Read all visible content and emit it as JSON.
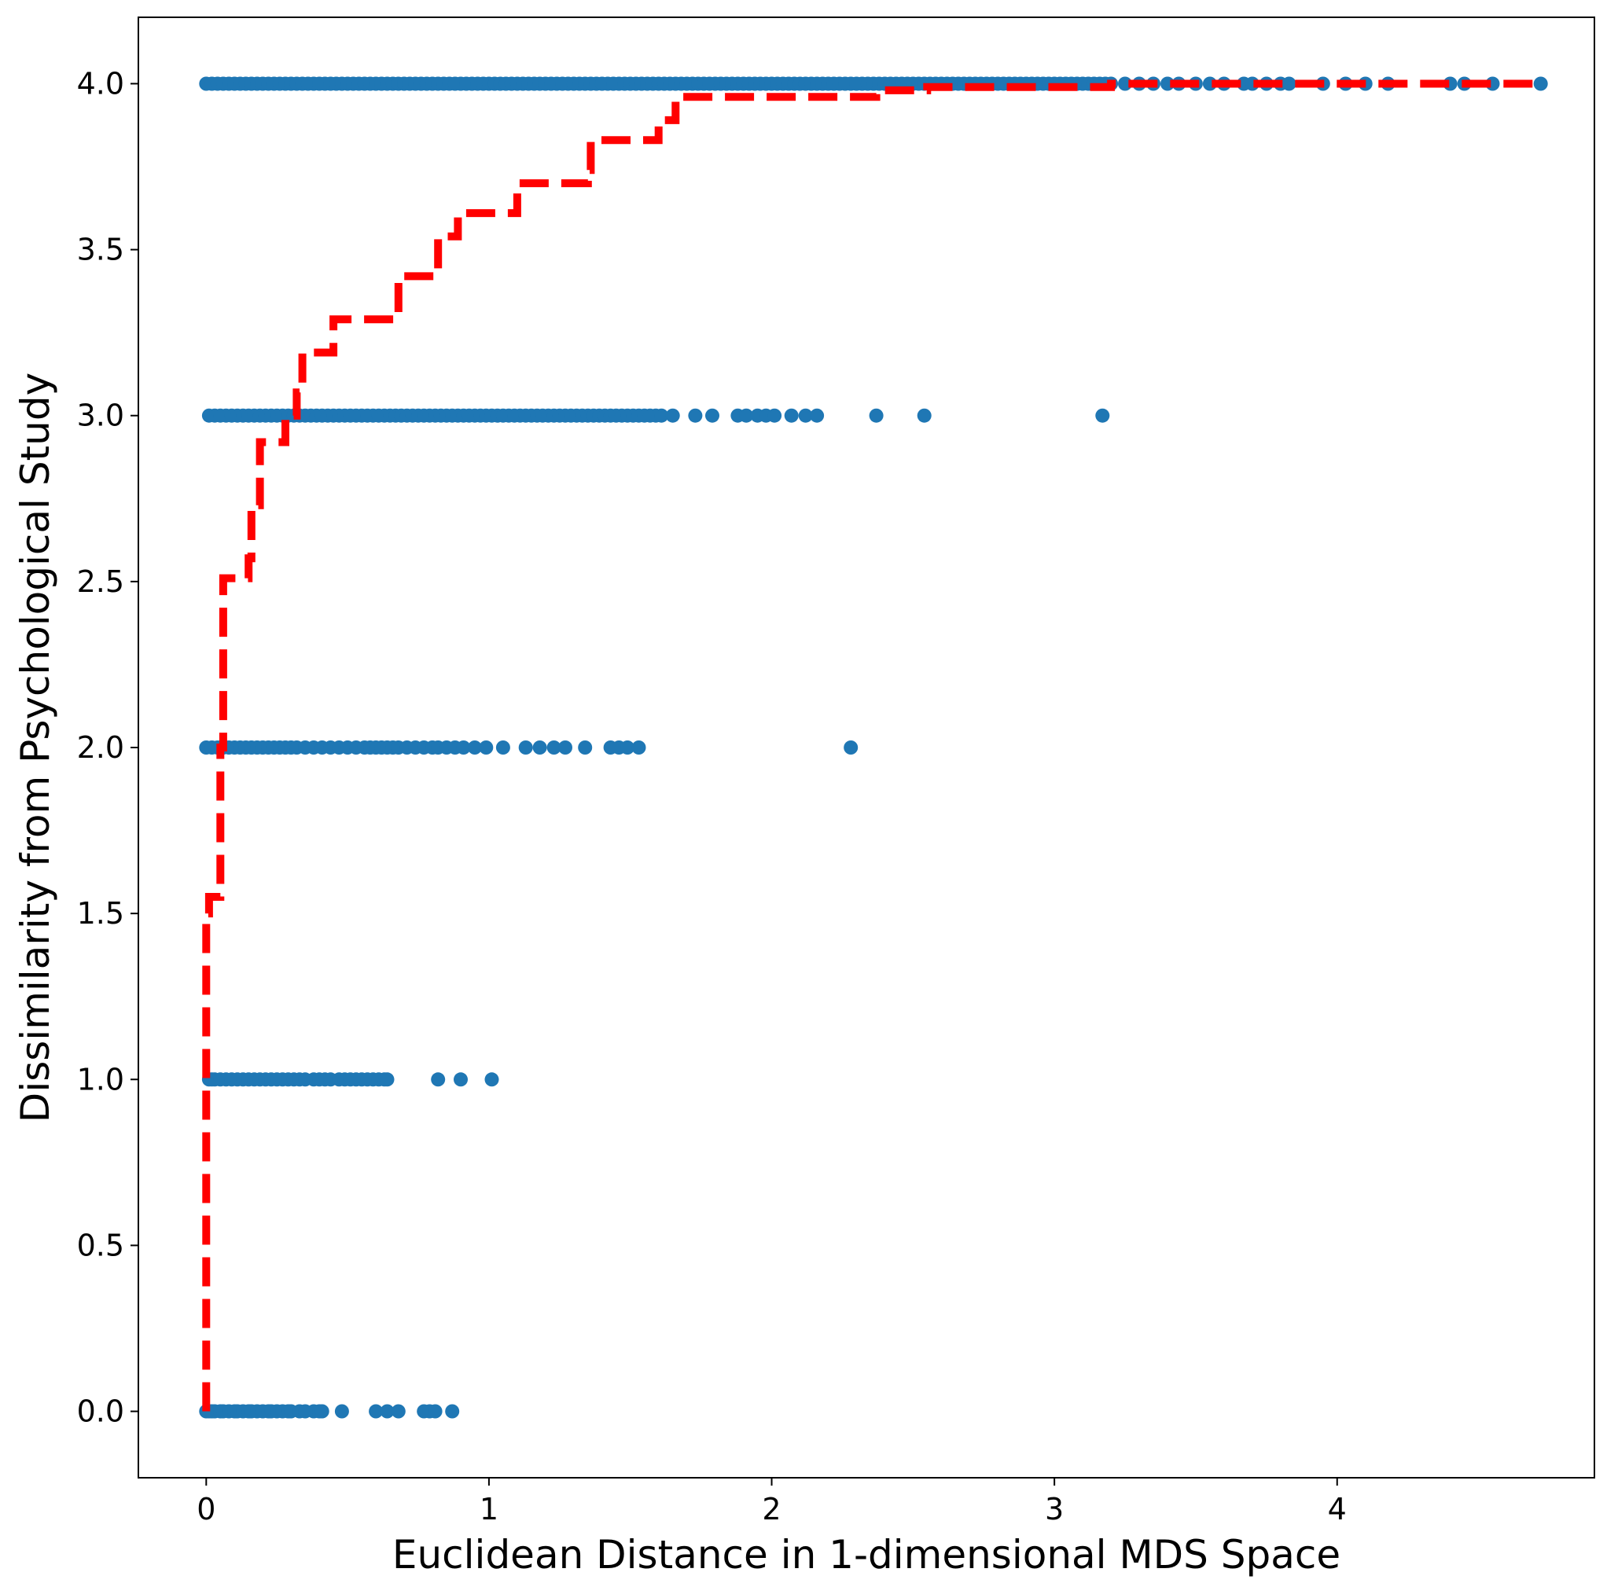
{
  "chart_data": {
    "type": "scatter",
    "title": "",
    "xlabel": "Euclidean Distance in 1-dimensional MDS Space",
    "ylabel": "Dissimilarity from Psychological Study",
    "xlim": [
      -0.24,
      4.91
    ],
    "ylim": [
      -0.2,
      4.2
    ],
    "x_ticks": [
      0,
      1,
      2,
      3,
      4
    ],
    "x_tick_labels": [
      "0",
      "1",
      "2",
      "3",
      "4"
    ],
    "y_ticks": [
      0.0,
      0.5,
      1.0,
      1.5,
      2.0,
      2.5,
      3.0,
      3.5,
      4.0
    ],
    "y_tick_labels": [
      "0.0",
      "0.5",
      "1.0",
      "1.5",
      "2.0",
      "2.5",
      "3.0",
      "3.5",
      "4.0"
    ],
    "grid": false,
    "legend": "none",
    "colors": {
      "points": "#1f77b4",
      "fit_line": "#ff0000"
    },
    "series": [
      {
        "type": "scatter",
        "rows": [
          {
            "y": 0.0,
            "x": [
              0.0,
              0.01,
              0.02,
              0.03,
              0.05,
              0.06,
              0.08,
              0.1,
              0.11,
              0.13,
              0.15,
              0.16,
              0.18,
              0.2,
              0.22,
              0.23,
              0.25,
              0.27,
              0.29,
              0.3,
              0.33,
              0.35,
              0.38,
              0.4,
              0.41,
              0.48,
              0.6,
              0.64,
              0.68,
              0.77,
              0.79,
              0.81,
              0.87
            ]
          },
          {
            "y": 1.0,
            "x": [
              0.01,
              0.02,
              0.03,
              0.05,
              0.07,
              0.09,
              0.11,
              0.13,
              0.15,
              0.17,
              0.19,
              0.21,
              0.23,
              0.25,
              0.27,
              0.29,
              0.31,
              0.33,
              0.35,
              0.38,
              0.4,
              0.42,
              0.44,
              0.47,
              0.49,
              0.51,
              0.53,
              0.55,
              0.57,
              0.59,
              0.61,
              0.63,
              0.64,
              0.82,
              0.9,
              1.01
            ]
          },
          {
            "y": 2.0,
            "x": [
              0.0,
              0.02,
              0.04,
              0.06,
              0.08,
              0.1,
              0.12,
              0.14,
              0.16,
              0.18,
              0.2,
              0.22,
              0.24,
              0.26,
              0.28,
              0.3,
              0.32,
              0.35,
              0.38,
              0.41,
              0.44,
              0.47,
              0.5,
              0.53,
              0.56,
              0.58,
              0.6,
              0.62,
              0.64,
              0.66,
              0.68,
              0.71,
              0.74,
              0.77,
              0.8,
              0.82,
              0.85,
              0.88,
              0.91,
              0.95,
              0.99,
              1.05,
              1.13,
              1.18,
              1.23,
              1.27,
              1.34,
              1.43,
              1.46,
              1.49,
              1.53,
              2.28
            ]
          },
          {
            "y": 3.0,
            "x": [
              0.01,
              0.03,
              0.05,
              0.07,
              0.09,
              0.11,
              0.13,
              0.15,
              0.17,
              0.19,
              0.21,
              0.23,
              0.25,
              0.27,
              0.29,
              0.31,
              0.33,
              0.35,
              0.37,
              0.39,
              0.41,
              0.43,
              0.45,
              0.47,
              0.49,
              0.51,
              0.53,
              0.55,
              0.57,
              0.59,
              0.61,
              0.63,
              0.65,
              0.67,
              0.69,
              0.71,
              0.73,
              0.75,
              0.77,
              0.79,
              0.81,
              0.83,
              0.85,
              0.87,
              0.89,
              0.91,
              0.93,
              0.95,
              0.97,
              0.99,
              1.01,
              1.03,
              1.05,
              1.07,
              1.09,
              1.11,
              1.13,
              1.15,
              1.17,
              1.19,
              1.21,
              1.23,
              1.25,
              1.27,
              1.29,
              1.31,
              1.33,
              1.35,
              1.37,
              1.39,
              1.41,
              1.43,
              1.45,
              1.47,
              1.49,
              1.51,
              1.53,
              1.55,
              1.57,
              1.59,
              1.61,
              1.65,
              1.73,
              1.79,
              1.88,
              1.91,
              1.95,
              1.98,
              2.01,
              2.07,
              2.12,
              2.16,
              2.37,
              2.54,
              3.17
            ]
          },
          {
            "y": 4.0,
            "x_dense_range": [
              0.0,
              3.2
            ],
            "x": [
              3.25,
              3.3,
              3.35,
              3.4,
              3.44,
              3.5,
              3.55,
              3.6,
              3.67,
              3.7,
              3.75,
              3.8,
              3.83,
              3.95,
              4.03,
              4.1,
              4.18,
              4.4,
              4.45,
              4.55,
              4.72
            ]
          }
        ]
      },
      {
        "type": "step",
        "style": "dashed",
        "points": [
          [
            0.0,
            0.0
          ],
          [
            0.0,
            1.5
          ],
          [
            0.01,
            1.5
          ],
          [
            0.01,
            1.55
          ],
          [
            0.05,
            1.55
          ],
          [
            0.05,
            2.0
          ],
          [
            0.06,
            2.0
          ],
          [
            0.06,
            2.51
          ],
          [
            0.15,
            2.51
          ],
          [
            0.15,
            2.57
          ],
          [
            0.16,
            2.57
          ],
          [
            0.16,
            2.73
          ],
          [
            0.19,
            2.73
          ],
          [
            0.19,
            2.92
          ],
          [
            0.28,
            2.92
          ],
          [
            0.28,
            3.0
          ],
          [
            0.32,
            3.0
          ],
          [
            0.32,
            3.07
          ],
          [
            0.34,
            3.07
          ],
          [
            0.34,
            3.19
          ],
          [
            0.45,
            3.19
          ],
          [
            0.45,
            3.29
          ],
          [
            0.68,
            3.29
          ],
          [
            0.68,
            3.42
          ],
          [
            0.82,
            3.42
          ],
          [
            0.82,
            3.54
          ],
          [
            0.89,
            3.54
          ],
          [
            0.89,
            3.61
          ],
          [
            1.1,
            3.61
          ],
          [
            1.1,
            3.7
          ],
          [
            1.35,
            3.7
          ],
          [
            1.35,
            3.74
          ],
          [
            1.36,
            3.74
          ],
          [
            1.36,
            3.83
          ],
          [
            1.6,
            3.83
          ],
          [
            1.6,
            3.89
          ],
          [
            1.66,
            3.89
          ],
          [
            1.66,
            3.96
          ],
          [
            2.37,
            3.96
          ],
          [
            2.37,
            3.98
          ],
          [
            2.55,
            3.98
          ],
          [
            2.55,
            3.99
          ],
          [
            3.2,
            3.99
          ],
          [
            3.2,
            4.0
          ],
          [
            4.72,
            4.0
          ]
        ]
      }
    ]
  }
}
